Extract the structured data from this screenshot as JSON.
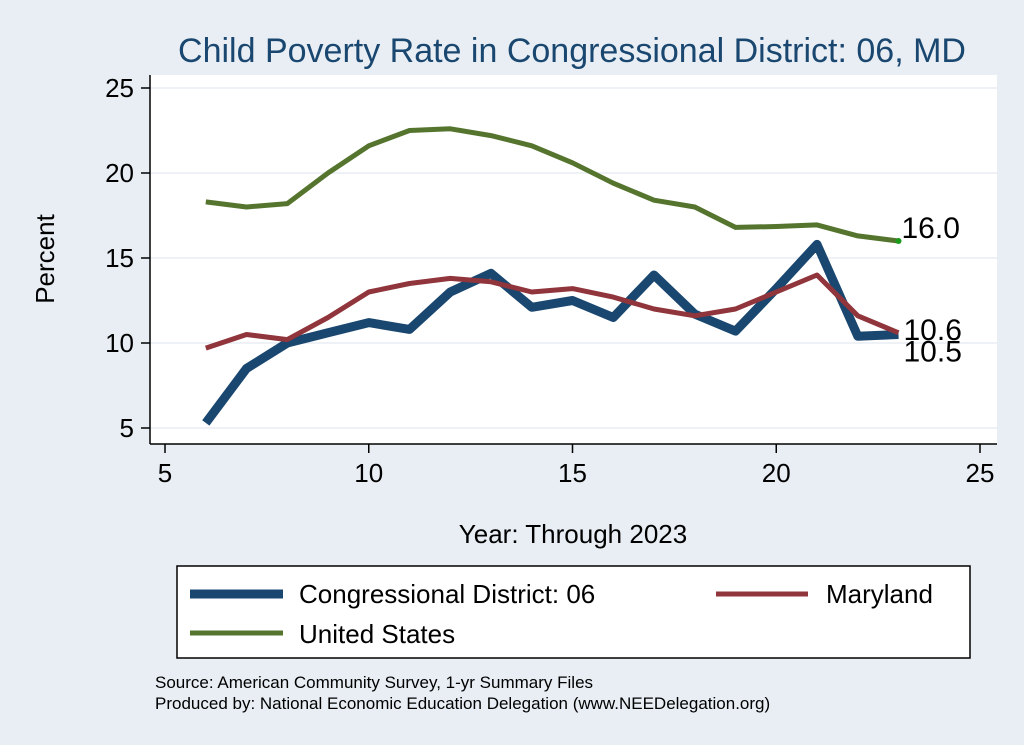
{
  "chart_data": {
    "type": "line",
    "title": "Child Poverty Rate in Congressional District:  06, MD",
    "xlabel": "Year: Through 2023",
    "ylabel": "Percent",
    "xlim": [
      5,
      25
    ],
    "ylim": [
      5,
      25
    ],
    "xticks": [
      5,
      10,
      15,
      20,
      25
    ],
    "yticks": [
      5,
      10,
      15,
      20,
      25
    ],
    "grid": true,
    "legend_position": "bottom",
    "x": [
      6,
      7,
      8,
      9,
      10,
      11,
      12,
      13,
      14,
      15,
      16,
      17,
      18,
      19,
      20,
      21,
      22,
      23
    ],
    "series": [
      {
        "name": "Congressional District:  06",
        "color": "#1a476f",
        "values": [
          5.3,
          8.5,
          10.0,
          10.6,
          11.2,
          10.8,
          13.0,
          14.1,
          12.1,
          12.5,
          11.5,
          14.0,
          11.7,
          10.7,
          13.2,
          15.8,
          10.4,
          10.5
        ],
        "end_label": "10.5"
      },
      {
        "name": "Maryland",
        "color": "#90353b",
        "values": [
          9.7,
          10.5,
          10.2,
          11.5,
          13.0,
          13.5,
          13.8,
          13.6,
          13.0,
          13.2,
          12.7,
          12.0,
          11.6,
          12.0,
          13.0,
          14.0,
          11.6,
          10.6
        ],
        "end_label": "10.6"
      },
      {
        "name": "United States",
        "color": "#55752f",
        "values": [
          18.3,
          18.0,
          18.2,
          20.0,
          21.6,
          22.5,
          22.6,
          22.2,
          21.6,
          20.6,
          19.4,
          18.4,
          18.0,
          16.8,
          16.85,
          16.95,
          16.3,
          16.0
        ],
        "end_label": "16.0"
      }
    ]
  },
  "footer": {
    "source": "Source: American Community Survey, 1-yr Summary Files",
    "produced_by": "Produced by: National Economic Education Delegation (www.NEEDelegation.org)"
  },
  "colors": {
    "background": "#e8eef4",
    "plot_background": "#ffffff",
    "title": "#1a476f",
    "grid": "#e8eef4"
  }
}
